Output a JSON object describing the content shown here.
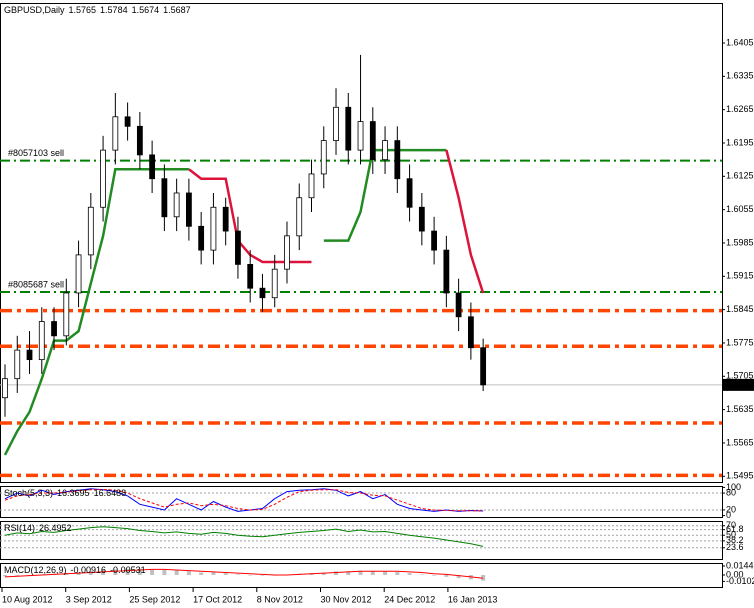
{
  "chart_data": [
    {
      "type": "candlestick",
      "symbol": "GBPUSD,Daily",
      "open": [
        1.566,
        1.57,
        1.576,
        1.574,
        1.582,
        1.579,
        1.588,
        1.596,
        1.606,
        1.618,
        1.625,
        1.623,
        1.617,
        1.612,
        1.604,
        1.609,
        1.602,
        1.597,
        1.606,
        1.601,
        1.594,
        1.589,
        1.587,
        1.593,
        1.6,
        1.608,
        1.613,
        1.62,
        1.627,
        1.618,
        1.624,
        1.616,
        1.62,
        1.612,
        1.606,
        1.601,
        1.597,
        1.588,
        1.583,
        1.5765
      ],
      "high": [
        1.573,
        1.579,
        1.58,
        1.585,
        1.585,
        1.591,
        1.599,
        1.609,
        1.621,
        1.63,
        1.628,
        1.626,
        1.62,
        1.615,
        1.612,
        1.612,
        1.605,
        1.609,
        1.608,
        1.604,
        1.597,
        1.592,
        1.596,
        1.603,
        1.611,
        1.616,
        1.623,
        1.631,
        1.63,
        1.638,
        1.627,
        1.623,
        1.623,
        1.615,
        1.609,
        1.604,
        1.6,
        1.591,
        1.586,
        1.5784
      ],
      "low": [
        1.562,
        1.567,
        1.571,
        1.571,
        1.576,
        1.577,
        1.585,
        1.593,
        1.603,
        1.615,
        1.62,
        1.614,
        1.609,
        1.601,
        1.601,
        1.599,
        1.594,
        1.594,
        1.598,
        1.591,
        1.586,
        1.584,
        1.585,
        1.59,
        1.597,
        1.605,
        1.61,
        1.617,
        1.615,
        1.615,
        1.613,
        1.613,
        1.609,
        1.603,
        1.598,
        1.594,
        1.585,
        1.58,
        1.574,
        1.5674
      ],
      "close": [
        1.57,
        1.576,
        1.574,
        1.582,
        1.579,
        1.588,
        1.596,
        1.606,
        1.618,
        1.625,
        1.623,
        1.617,
        1.612,
        1.604,
        1.609,
        1.602,
        1.597,
        1.606,
        1.601,
        1.594,
        1.589,
        1.587,
        1.593,
        1.6,
        1.608,
        1.613,
        1.62,
        1.627,
        1.618,
        1.624,
        1.616,
        1.62,
        1.612,
        1.606,
        1.601,
        1.597,
        1.588,
        1.583,
        1.5765,
        1.5687
      ],
      "xlabels": [
        "10 Aug 2012",
        "3 Sep 2012",
        "25 Sep 2012",
        "17 Oct 2012",
        "8 Nov 2012",
        "30 Nov 2012",
        "24 Dec 2012",
        "16 Jan 2013"
      ],
      "ylim": [
        1.5483,
        1.6489
      ],
      "yticks": [
        1.6405,
        1.6335,
        1.6265,
        1.6195,
        1.6125,
        1.6055,
        1.5985,
        1.5915,
        1.5845,
        1.5775,
        1.5705,
        1.5635,
        1.5565,
        1.5495
      ],
      "levels": [
        {
          "value": 1.6158,
          "color": "#007f00",
          "label": "#8057103 sell"
        },
        {
          "value": 1.5882,
          "color": "#007f00",
          "label": "#8085687 sell"
        },
        {
          "value": 1.5843,
          "color": "#ff4500"
        },
        {
          "value": 1.5768,
          "color": "#ff4500"
        },
        {
          "value": 1.5607,
          "color": "#ff4500"
        },
        {
          "value": 1.5497,
          "color": "#ff4500"
        }
      ],
      "series": [
        {
          "color": "#228b22",
          "values": [
            1.554,
            1.559,
            1.563,
            1.57,
            1.578,
            1.578,
            1.58,
            1.59,
            1.6,
            1.614,
            1.614,
            1.614,
            1.614,
            1.614,
            1.614,
            1.614,
            null,
            null,
            null,
            null,
            null,
            null,
            null,
            null,
            null,
            null,
            1.599,
            1.599,
            1.599,
            1.605,
            1.618,
            1.618,
            1.618,
            1.618,
            1.618,
            1.618,
            1.618,
            null,
            null,
            null
          ]
        },
        {
          "color": "#dc143c",
          "values": [
            null,
            null,
            null,
            null,
            null,
            null,
            null,
            null,
            null,
            null,
            null,
            null,
            null,
            null,
            null,
            1.614,
            1.612,
            1.612,
            1.612,
            1.599,
            1.596,
            1.5945,
            1.5945,
            1.5945,
            1.5945,
            1.5945,
            null,
            null,
            null,
            null,
            null,
            null,
            null,
            null,
            null,
            null,
            1.618,
            1.608,
            1.596,
            1.588
          ]
        }
      ]
    },
    {
      "type": "line",
      "title": "Stoch(5,3,3)",
      "ylim": [
        -5,
        105
      ],
      "yticks": [
        100,
        80,
        20,
        0
      ],
      "levels": [
        80,
        20
      ],
      "series": [
        {
          "color": "#0000ff",
          "values": [
            60,
            80,
            70,
            90,
            75,
            85,
            90,
            95,
            92,
            85,
            70,
            40,
            30,
            20,
            60,
            40,
            20,
            50,
            30,
            15,
            20,
            25,
            60,
            85,
            90,
            92,
            95,
            90,
            70,
            85,
            60,
            75,
            40,
            25,
            20,
            15,
            20,
            15,
            18,
            16.3695
          ]
        },
        {
          "color": "#ff0000",
          "values": [
            55,
            70,
            75,
            80,
            80,
            83,
            88,
            92,
            93,
            90,
            80,
            60,
            45,
            30,
            40,
            45,
            35,
            40,
            35,
            25,
            20,
            22,
            40,
            65,
            85,
            90,
            92,
            92,
            82,
            80,
            72,
            70,
            55,
            40,
            25,
            20,
            18,
            17,
            17,
            16.6488
          ]
        }
      ]
    },
    {
      "type": "line",
      "title": "RSI(14)",
      "ylim": [
        0,
        80
      ],
      "yticks": [
        70,
        61.8,
        50,
        38.2,
        23.6
      ],
      "levels": [
        70,
        61.8,
        50,
        38.2,
        23.6
      ],
      "series": [
        {
          "color": "#008000",
          "values": [
            50,
            55,
            53,
            58,
            56,
            60,
            63,
            66,
            68,
            66,
            64,
            60,
            58,
            55,
            57,
            54,
            52,
            56,
            54,
            50,
            48,
            47,
            50,
            53,
            56,
            58,
            60,
            63,
            58,
            61,
            57,
            58,
            54,
            50,
            47,
            44,
            40,
            36,
            32,
            26.4952
          ]
        }
      ]
    },
    {
      "type": "macd",
      "title": "MACD(12,26,9)",
      "ylim": [
        -0.0192,
        0.0192
      ],
      "yticks": [
        0.0144,
        {
          "value": 0,
          "label": "0.00"
        },
        -0.0102
      ],
      "series": [
        {
          "color": "#c0c0c0",
          "values": [
            -0.002,
            -0.001,
            0,
            0.001,
            0.002,
            0.003,
            0.004,
            0.006,
            0.008,
            0.009,
            0.01,
            0.01,
            0.009,
            0.008,
            0.007,
            0.006,
            0.004,
            0.004,
            0.003,
            0.001,
            0,
            -0.001,
            -0.001,
            0,
            0.002,
            0.003,
            0.004,
            0.006,
            0.006,
            0.007,
            0.006,
            0.006,
            0.005,
            0.003,
            0.001,
            -0.001,
            -0.003,
            -0.005,
            -0.007,
            -0.00916
          ]
        },
        {
          "color": "#ff0000",
          "values": [
            -0.003,
            -0.002,
            -0.001,
            0,
            0.001,
            0.002,
            0.003,
            0.004,
            0.005,
            0.006,
            0.007,
            0.008,
            0.009,
            0.009,
            0.008,
            0.007,
            0.006,
            0.005,
            0.004,
            0.003,
            0.002,
            0.001,
            0,
            0,
            0.001,
            0.002,
            0.003,
            0.004,
            0.005,
            0.006,
            0.006,
            0.006,
            0.006,
            0.005,
            0.004,
            0.002,
            0.001,
            -0.001,
            -0.003,
            -0.00531
          ]
        }
      ]
    }
  ]
}
